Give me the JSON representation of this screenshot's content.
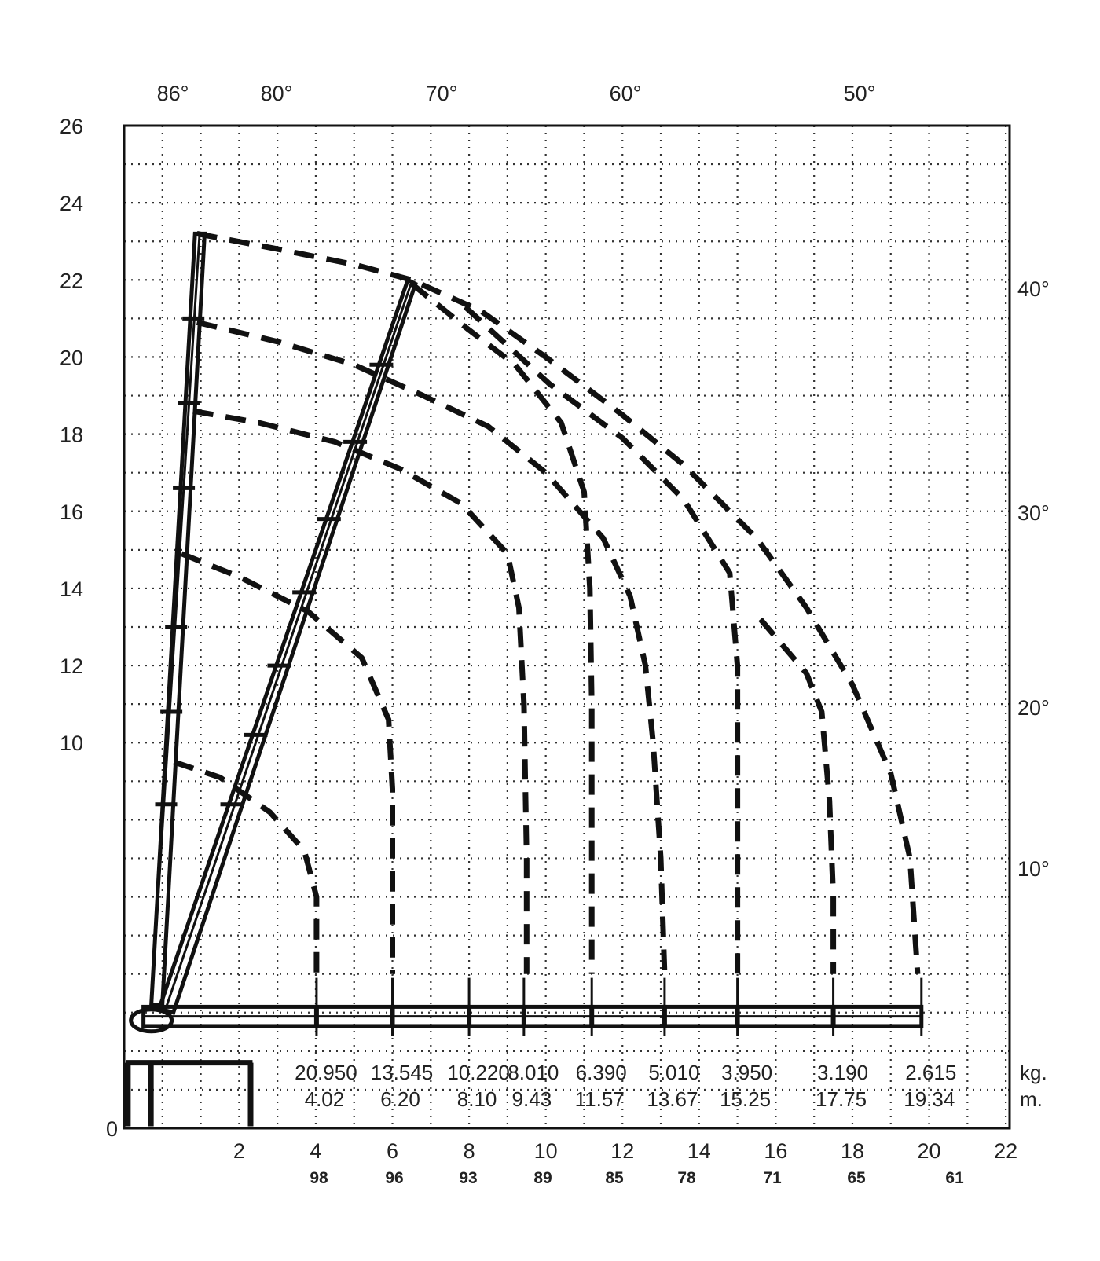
{
  "chart_data": {
    "type": "line",
    "xlim": [
      -1,
      22.1
    ],
    "ylim": [
      0,
      26
    ],
    "x_ticks": [
      "2",
      "4",
      "6",
      "8",
      "10",
      "12",
      "14",
      "16",
      "18",
      "20",
      "22"
    ],
    "y_ticks": [
      "0",
      "10",
      "12",
      "14",
      "16",
      "18",
      "20",
      "22",
      "24",
      "26"
    ],
    "top_angles": [
      "86°",
      "80°",
      "70°",
      "60°",
      "50°"
    ],
    "right_angles": [
      "10°",
      "20°",
      "30°",
      "40°"
    ],
    "bottom_numbers": [
      "98",
      "96",
      "93",
      "89",
      "85",
      "78",
      "71",
      "65",
      "61"
    ],
    "load_unit": "kg.",
    "reach_unit": "m.",
    "load_chart": [
      {
        "load": "20.950",
        "reach": "4.02",
        "x": 4.02
      },
      {
        "load": "13.545",
        "reach": "6.20",
        "x": 6.0
      },
      {
        "load": "10.220",
        "reach": "8.10",
        "x": 8.0
      },
      {
        "load": "8.010",
        "reach": "9.43",
        "x": 9.43
      },
      {
        "load": "6.390",
        "reach": "11.57",
        "x": 11.2
      },
      {
        "load": "5.010",
        "reach": "13.67",
        "x": 13.1
      },
      {
        "load": "3.950",
        "reach": "15.25",
        "x": 15.0
      },
      {
        "load": "3.190",
        "reach": "17.75",
        "x": 17.5
      },
      {
        "load": "2.615",
        "reach": "19.34",
        "x": 19.8
      }
    ],
    "series": [
      {
        "points": [
          [
            0.9,
            23.2
          ],
          [
            3.0,
            22.8
          ],
          [
            5.0,
            22.4
          ],
          [
            6.5,
            22.0
          ],
          [
            8.3,
            21.2
          ],
          [
            10.0,
            20.0
          ],
          [
            12.0,
            18.5
          ],
          [
            13.6,
            17.2
          ],
          [
            15.5,
            15.3
          ],
          [
            16.8,
            13.5
          ],
          [
            18.0,
            11.5
          ],
          [
            19.0,
            9.2
          ],
          [
            19.5,
            7.0
          ],
          [
            19.7,
            4.0
          ]
        ]
      },
      {
        "points": [
          [
            0.9,
            20.9
          ],
          [
            3.0,
            20.4
          ],
          [
            5.0,
            19.8
          ],
          [
            6.8,
            19.0
          ],
          [
            8.5,
            18.2
          ],
          [
            10.0,
            17.0
          ],
          [
            11.5,
            15.3
          ],
          [
            12.2,
            13.8
          ],
          [
            12.6,
            12.0
          ],
          [
            12.8,
            10.0
          ],
          [
            13.0,
            7.0
          ],
          [
            13.1,
            4.0
          ]
        ]
      },
      {
        "points": [
          [
            0.8,
            18.6
          ],
          [
            2.5,
            18.3
          ],
          [
            4.5,
            17.8
          ],
          [
            6.2,
            17.1
          ],
          [
            7.8,
            16.2
          ],
          [
            9.0,
            14.9
          ],
          [
            9.3,
            13.5
          ],
          [
            9.43,
            11.0
          ],
          [
            9.5,
            7.0
          ],
          [
            9.5,
            4.0
          ]
        ]
      },
      {
        "points": [
          [
            0.5,
            14.9
          ],
          [
            2.0,
            14.3
          ],
          [
            3.8,
            13.4
          ],
          [
            5.2,
            12.2
          ],
          [
            5.9,
            10.6
          ],
          [
            6.0,
            8.8
          ],
          [
            6.0,
            6.5
          ],
          [
            6.0,
            4.0
          ]
        ]
      },
      {
        "points": [
          [
            0.3,
            9.5
          ],
          [
            1.5,
            9.1
          ],
          [
            2.8,
            8.2
          ],
          [
            3.7,
            7.2
          ],
          [
            4.02,
            6.0
          ],
          [
            4.02,
            4.5
          ],
          [
            4.02,
            4.0
          ]
        ]
      },
      {
        "points": [
          [
            6.5,
            21.9
          ],
          [
            8.0,
            20.7
          ],
          [
            9.2,
            19.8
          ],
          [
            10.4,
            18.3
          ],
          [
            11.0,
            16.5
          ],
          [
            11.15,
            14.0
          ],
          [
            11.2,
            11.0
          ],
          [
            11.2,
            7.5
          ],
          [
            11.2,
            4.0
          ]
        ]
      },
      {
        "points": [
          [
            7.9,
            21.3
          ],
          [
            10.1,
            19.3
          ],
          [
            12.0,
            17.9
          ],
          [
            13.6,
            16.3
          ],
          [
            14.8,
            14.4
          ],
          [
            15.0,
            12.0
          ],
          [
            15.0,
            8.0
          ],
          [
            15.0,
            4.0
          ]
        ]
      },
      {
        "points": [
          [
            15.6,
            13.2
          ],
          [
            16.8,
            11.8
          ],
          [
            17.2,
            10.8
          ],
          [
            17.4,
            8.5
          ],
          [
            17.5,
            6.0
          ],
          [
            17.5,
            4.0
          ]
        ]
      }
    ]
  }
}
